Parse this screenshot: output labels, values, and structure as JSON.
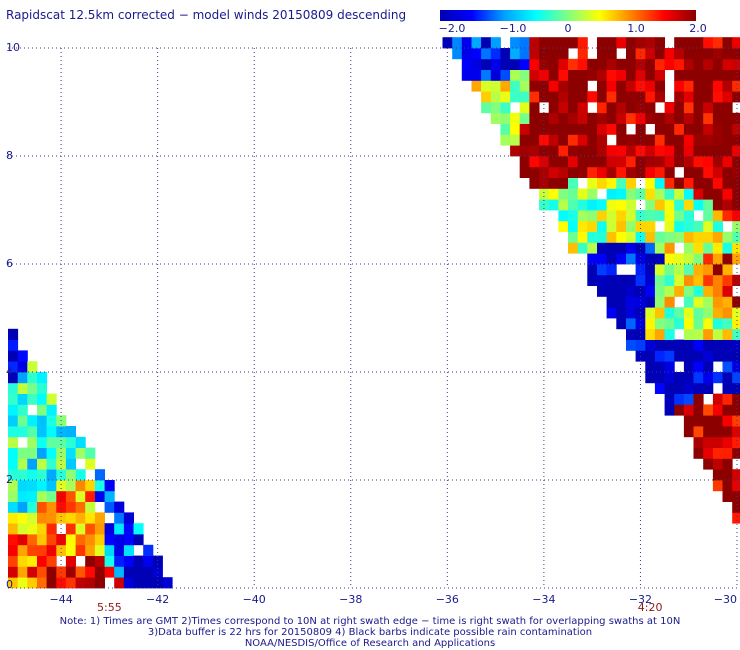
{
  "header": {
    "title": "Rapidscat 12.5km corrected − model winds 20150809 descending"
  },
  "colorbar": {
    "labels": [
      "−2.0",
      "−1.0",
      "0",
      "1.0",
      "2.0"
    ],
    "values": [
      -2.0,
      -1.0,
      0,
      1.0,
      2.0
    ],
    "stops": [
      "#0000b4",
      "#0000ff",
      "#00a0ff",
      "#00ffff",
      "#80ff80",
      "#ffff00",
      "#ff8000",
      "#ff0000",
      "#8c0000"
    ]
  },
  "chart_data": {
    "type": "heatmap",
    "title": "Rapidscat 12.5km corrected − model winds 20150809 descending",
    "xlabel": "",
    "ylabel": "",
    "xlim": [
      -45.1,
      -30
    ],
    "ylim": [
      0,
      10
    ],
    "x_ticks": [
      -44,
      -42,
      -40,
      -38,
      -36,
      -34,
      -32,
      -30
    ],
    "x_tick_labels": [
      "−44",
      "−42",
      "−40",
      "−38",
      "−36",
      "−34",
      "−32",
      "−30"
    ],
    "y_ticks": [
      0,
      2,
      4,
      6,
      8,
      10
    ],
    "y_tick_labels": [
      "0",
      "2",
      "4",
      "6",
      "8",
      "10"
    ],
    "grid": true,
    "color_range": [
      -2.0,
      2.0
    ],
    "cell_size_deg": 0.2,
    "swaths": [
      {
        "name": "5:55",
        "edge_line": [
          [
            -45.1,
            4.9
          ],
          [
            -41.6,
            0.0
          ]
        ],
        "bands": [
          {
            "from": [
              -45.1,
              0.8
            ],
            "to": [
              -44.6,
              0.1
            ],
            "value": 1.0
          },
          {
            "from": [
              -44.6,
              0.5
            ],
            "to": [
              -43.0,
              0.0
            ],
            "value": 1.6
          },
          {
            "from": [
              -44.2,
              1.5
            ],
            "to": [
              -43.2,
              0.5
            ],
            "value": 0.9
          },
          {
            "from": [
              -45.1,
              4.5
            ],
            "to": [
              -43.6,
              2.0
            ],
            "value": -0.3
          },
          {
            "from": [
              -43.0,
              1.8
            ],
            "to": [
              -42.6,
              0.4
            ],
            "value": -1.1
          },
          {
            "from": [
              -42.4,
              0.9
            ],
            "to": [
              -41.8,
              0.1
            ],
            "value": -2.0
          },
          {
            "from": [
              -45.1,
              4.9
            ],
            "to": [
              -44.8,
              4.0
            ],
            "value": -1.9
          }
        ]
      },
      {
        "name": "4:20",
        "edge_line": [
          [
            -36.0,
            10.0
          ],
          [
            -30.1,
            1.4
          ]
        ],
        "bands": [
          {
            "from": [
              -34.8,
              9.9
            ],
            "to": [
              -30.1,
              7.4
            ],
            "value": 2.0
          },
          {
            "from": [
              -35.4,
              9.6
            ],
            "to": [
              -34.4,
              8.4
            ],
            "value": 0.4
          },
          {
            "from": [
              -33.8,
              7.6
            ],
            "to": [
              -31.2,
              6.2
            ],
            "value": 0.1
          },
          {
            "from": [
              -33.2,
              6.6
            ],
            "to": [
              -31.6,
              5.0
            ],
            "value": -1.8
          },
          {
            "from": [
              -31.8,
              6.2
            ],
            "to": [
              -30.1,
              4.6
            ],
            "value": 0.3
          },
          {
            "from": [
              -31.0,
              6.0
            ],
            "to": [
              -30.1,
              5.2
            ],
            "value": 1.5
          },
          {
            "from": [
              -31.8,
              4.6
            ],
            "to": [
              -30.1,
              3.6
            ],
            "value": -1.9
          },
          {
            "from": [
              -31.0,
              3.8
            ],
            "to": [
              -30.1,
              1.6
            ],
            "value": 1.9
          },
          {
            "from": [
              -35.6,
              10.0
            ],
            "to": [
              -34.6,
              9.4
            ],
            "value": -1.6
          }
        ]
      }
    ]
  },
  "swath_labels": [
    {
      "text": "5:55",
      "x": -43.0
    },
    {
      "text": "4:20",
      "x": -31.8
    }
  ],
  "notes": {
    "line1": "Note: 1) Times are GMT 2)Times correspond to 10N at right swath edge − time is right swath for overlapping swaths at 10N",
    "line2": "3)Data buffer is 22 hrs for 20150809 4) Black barbs indicate possible rain contamination",
    "line3": "NOAA/NESDIS/Office of Research and Applications"
  }
}
